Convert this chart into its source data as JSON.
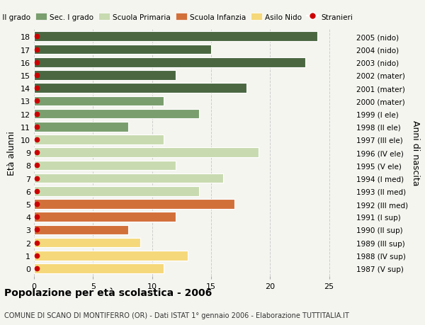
{
  "ages": [
    18,
    17,
    16,
    15,
    14,
    13,
    12,
    11,
    10,
    9,
    8,
    7,
    6,
    5,
    4,
    3,
    2,
    1,
    0
  ],
  "years": [
    "1987 (V sup)",
    "1988 (IV sup)",
    "1989 (III sup)",
    "1990 (II sup)",
    "1991 (I sup)",
    "1992 (III med)",
    "1993 (II med)",
    "1994 (I med)",
    "1995 (V ele)",
    "1996 (IV ele)",
    "1997 (III ele)",
    "1998 (II ele)",
    "1999 (I ele)",
    "2000 (mater)",
    "2001 (mater)",
    "2002 (mater)",
    "2003 (nido)",
    "2004 (nido)",
    "2005 (nido)"
  ],
  "values": [
    24,
    15,
    23,
    12,
    18,
    11,
    14,
    8,
    11,
    19,
    12,
    16,
    14,
    17,
    12,
    8,
    9,
    13,
    11
  ],
  "categories": [
    "Sec. II grado",
    "Sec. II grado",
    "Sec. II grado",
    "Sec. II grado",
    "Sec. II grado",
    "Sec. I grado",
    "Sec. I grado",
    "Sec. I grado",
    "Scuola Primaria",
    "Scuola Primaria",
    "Scuola Primaria",
    "Scuola Primaria",
    "Scuola Primaria",
    "Scuola Infanzia",
    "Scuola Infanzia",
    "Scuola Infanzia",
    "Asilo Nido",
    "Asilo Nido",
    "Asilo Nido"
  ],
  "color_map": {
    "Sec. II grado": "#4a6741",
    "Sec. I grado": "#7a9e6e",
    "Scuola Primaria": "#c8dab0",
    "Scuola Infanzia": "#d2703a",
    "Asilo Nido": "#f5d87a"
  },
  "stranieri_color": "#cc0000",
  "background_color": "#f5f5f0",
  "title": "Popolazione per età scolastica - 2006",
  "subtitle": "COMUNE DI SCANO DI MONTIFERRO (OR) - Dati ISTAT 1° gennaio 2006 - Elaborazione TUTTITALIA.IT",
  "ylabel": "Età alunni",
  "right_ylabel": "Anni di nascita",
  "xlim": [
    0,
    27
  ],
  "xticks": [
    0,
    5,
    10,
    15,
    20,
    25
  ],
  "legend_labels": [
    "Sec. II grado",
    "Sec. I grado",
    "Scuola Primaria",
    "Scuola Infanzia",
    "Asilo Nido",
    "Stranieri"
  ],
  "legend_colors": [
    "#4a6741",
    "#7a9e6e",
    "#c8dab0",
    "#d2703a",
    "#f5d87a",
    "#cc0000"
  ]
}
